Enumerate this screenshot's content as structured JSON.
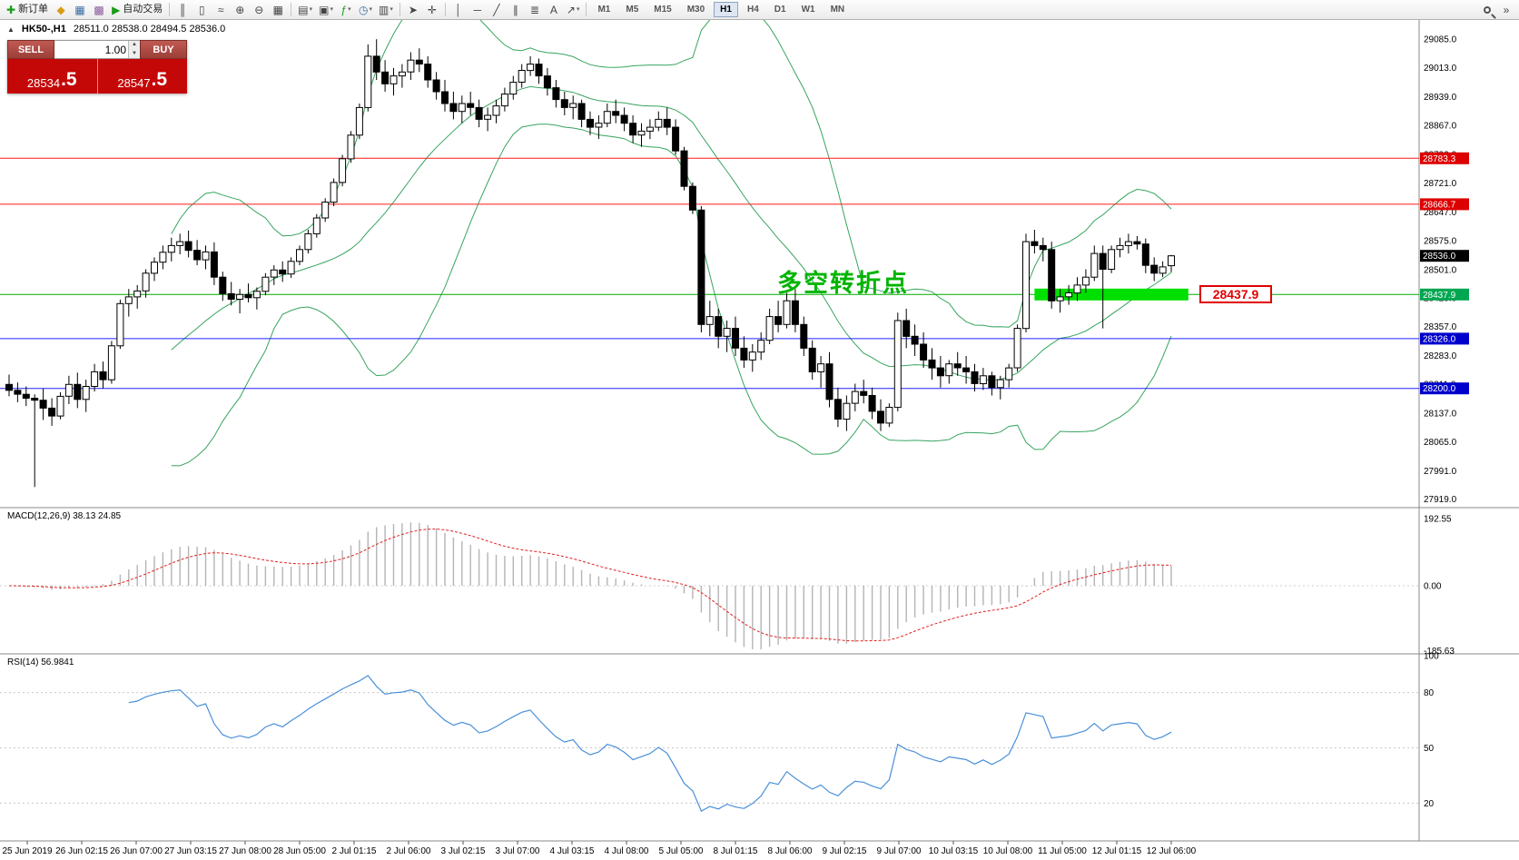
{
  "toolbar": {
    "new_order_label": "新订单",
    "autotrading_label": "自动交易",
    "timeframes": [
      "M1",
      "M5",
      "M15",
      "M30",
      "H1",
      "H4",
      "D1",
      "W1",
      "MN"
    ],
    "active_timeframe": "H1",
    "items": [
      {
        "name": "new-order-button",
        "glyph": "✚",
        "color": "#1a9c1a",
        "label": "新订单"
      },
      {
        "name": "profiles-icon",
        "glyph": "◆",
        "color": "#d89c14"
      },
      {
        "name": "market-watch-icon",
        "glyph": "▦",
        "color": "#3a6ea5"
      },
      {
        "name": "navigator-icon",
        "glyph": "▩",
        "color": "#8a5a9c"
      },
      {
        "name": "autotrading-button",
        "glyph": "▶",
        "color": "#1a9c1a",
        "label": "自动交易"
      },
      {
        "sep": true
      },
      {
        "name": "bar-chart-icon",
        "glyph": "║",
        "color": "#444"
      },
      {
        "name": "candlestick-chart-icon",
        "glyph": "▯",
        "color": "#444"
      },
      {
        "name": "line-chart-icon",
        "glyph": "≈",
        "color": "#444"
      },
      {
        "name": "zoom-in-icon",
        "glyph": "⊕",
        "color": "#444"
      },
      {
        "name": "zoom-out-icon",
        "glyph": "⊖",
        "color": "#444"
      },
      {
        "name": "tile-windows-icon",
        "glyph": "▦",
        "color": "#444"
      },
      {
        "sep": true
      },
      {
        "name": "new-chart-dropdown",
        "glyph": "▤",
        "color": "#444",
        "caret": true
      },
      {
        "name": "profiles-dropdown",
        "glyph": "▣",
        "color": "#444",
        "caret": true
      },
      {
        "name": "add-indicator-dropdown",
        "glyph": "ƒ",
        "color": "#1a9c1a",
        "caret": true
      },
      {
        "name": "period-dropdown",
        "glyph": "◷",
        "color": "#3a6ea5",
        "caret": true
      },
      {
        "name": "template-dropdown",
        "glyph": "▥",
        "color": "#444",
        "caret": true
      },
      {
        "sep": true
      },
      {
        "name": "cursor-icon",
        "glyph": "➤",
        "color": "#444"
      },
      {
        "name": "crosshair-icon",
        "glyph": "✛",
        "color": "#444"
      },
      {
        "sep": true
      },
      {
        "name": "vertical-line-icon",
        "glyph": "│",
        "color": "#444"
      },
      {
        "name": "horizontal-line-icon",
        "glyph": "─",
        "color": "#444"
      },
      {
        "name": "trendline-icon",
        "glyph": "╱",
        "color": "#444"
      },
      {
        "name": "channel-icon",
        "glyph": "∥",
        "color": "#444"
      },
      {
        "name": "fibonacci-icon",
        "glyph": "≣",
        "color": "#444"
      },
      {
        "name": "text-icon",
        "glyph": "A",
        "color": "#444"
      },
      {
        "name": "arrow-tool-dropdown",
        "glyph": "↗",
        "color": "#444",
        "caret": true
      },
      {
        "sep": true
      },
      {
        "timeframes": true
      },
      {
        "spacer": true
      },
      {
        "name": "search-icon"
      },
      {
        "name": "toolbar-overflow-icon",
        "glyph": "»",
        "color": "#444"
      }
    ]
  },
  "chart_header": {
    "symbol_period": "HK50-,H1",
    "ohlc": "28511.0 28538.0 28494.5 28536.0"
  },
  "one_click": {
    "sell_label": "SELL",
    "buy_label": "BUY",
    "volume": "1.00",
    "sell_price_main": "28534",
    "sell_price_frac": ".5",
    "buy_price_main": "28547",
    "buy_price_frac": ".5"
  },
  "indicators": {
    "macd_label": "MACD(12,26,9) 38.13 24.85",
    "rsi_label": "RSI(14) 56.9841"
  },
  "annotation": {
    "text": "多空转折点",
    "color": "#00b400"
  },
  "price_label_box": {
    "text": "28437.9"
  },
  "chart_data": {
    "type": "candlestick",
    "symbol": "HK50",
    "timeframe": "H1",
    "ohlc_readout": {
      "open": 28511.0,
      "high": 28538.0,
      "low": 28494.5,
      "close": 28536.0
    },
    "current_price": 28536.0,
    "price_axis_ticks": [
      29085,
      29013,
      28939,
      28867,
      28793,
      28721,
      28647,
      28575,
      28501,
      28429,
      28357,
      28283,
      28211,
      28137,
      28065,
      27991,
      27919
    ],
    "time_axis_labels": [
      "25 Jun 2019",
      "26 Jun 02:15",
      "26 Jun 07:00",
      "27 Jun 03:15",
      "27 Jun 08:00",
      "28 Jun 05:00",
      "2 Jul 01:15",
      "2 Jul 06:00",
      "3 Jul 02:15",
      "3 Jul 07:00",
      "4 Jul 03:15",
      "4 Jul 08:00",
      "5 Jul 05:00",
      "8 Jul 01:15",
      "8 Jul 06:00",
      "9 Jul 02:15",
      "9 Jul 07:00",
      "10 Jul 03:15",
      "10 Jul 08:00",
      "11 Jul 05:00",
      "12 Jul 01:15",
      "12 Jul 06:00"
    ],
    "hlines": [
      {
        "price": 28783.3,
        "color": "#ff1a1a",
        "badge": "#dd0000"
      },
      {
        "price": 28666.7,
        "color": "#ff1a1a",
        "badge": "#dd0000"
      },
      {
        "price": 28437.9,
        "color": "#00aa00",
        "badge": "#00a651"
      },
      {
        "price": 28326.0,
        "color": "#2020ff",
        "badge": "#0000cc"
      },
      {
        "price": 28200.0,
        "color": "#2020ff",
        "badge": "#0000cc"
      }
    ],
    "highlight_rect": {
      "price": 28437.9,
      "from_bar": 120,
      "to_bar": 138,
      "color": "#00e000",
      "label": "28437.9"
    },
    "bollinger": {
      "period": 20,
      "deviation": 2,
      "color": "#37a45f"
    },
    "macd": {
      "fast": 12,
      "slow": 26,
      "signal": 9,
      "values": [
        38.13,
        24.85
      ],
      "scale": [
        192.55,
        0.0,
        -185.63
      ]
    },
    "rsi": {
      "period": 14,
      "value": 56.9841,
      "scale": [
        100,
        80,
        50,
        20
      ]
    },
    "candles": [
      [
        28210,
        28235,
        28180,
        28195
      ],
      [
        28195,
        28215,
        28165,
        28185
      ],
      [
        28185,
        28205,
        28155,
        28175
      ],
      [
        28175,
        28185,
        27950,
        28170
      ],
      [
        28170,
        28200,
        28120,
        28150
      ],
      [
        28150,
        28175,
        28105,
        28130
      ],
      [
        28130,
        28190,
        28122,
        28180
      ],
      [
        28180,
        28232,
        28160,
        28210
      ],
      [
        28210,
        28240,
        28150,
        28172
      ],
      [
        28172,
        28222,
        28140,
        28205
      ],
      [
        28205,
        28262,
        28192,
        28242
      ],
      [
        28242,
        28268,
        28200,
        28222
      ],
      [
        28222,
        28320,
        28212,
        28308
      ],
      [
        28308,
        28425,
        28300,
        28415
      ],
      [
        28415,
        28452,
        28382,
        28432
      ],
      [
        28432,
        28462,
        28402,
        28447
      ],
      [
        28447,
        28502,
        28430,
        28492
      ],
      [
        28492,
        28532,
        28472,
        28520
      ],
      [
        28520,
        28562,
        28502,
        28545
      ],
      [
        28545,
        28582,
        28522,
        28562
      ],
      [
        28562,
        28592,
        28540,
        28572
      ],
      [
        28572,
        28600,
        28532,
        28550
      ],
      [
        28550,
        28576,
        28512,
        28526
      ],
      [
        28526,
        28562,
        28502,
        28546
      ],
      [
        28546,
        28570,
        28462,
        28482
      ],
      [
        28482,
        28496,
        28422,
        28440
      ],
      [
        28440,
        28470,
        28410,
        28426
      ],
      [
        28426,
        28452,
        28390,
        28438
      ],
      [
        28438,
        28466,
        28418,
        28430
      ],
      [
        28430,
        28456,
        28400,
        28446
      ],
      [
        28446,
        28492,
        28436,
        28482
      ],
      [
        28482,
        28512,
        28462,
        28500
      ],
      [
        28500,
        28522,
        28470,
        28490
      ],
      [
        28490,
        28532,
        28480,
        28522
      ],
      [
        28522,
        28562,
        28512,
        28552
      ],
      [
        28552,
        28602,
        28542,
        28592
      ],
      [
        28592,
        28642,
        28582,
        28632
      ],
      [
        28632,
        28682,
        28622,
        28672
      ],
      [
        28672,
        28732,
        28662,
        28722
      ],
      [
        28722,
        28792,
        28712,
        28782
      ],
      [
        28782,
        28852,
        28772,
        28842
      ],
      [
        28842,
        28922,
        28832,
        28912
      ],
      [
        28912,
        29072,
        28902,
        29042
      ],
      [
        29042,
        29085,
        28982,
        29002
      ],
      [
        29002,
        29032,
        28952,
        28972
      ],
      [
        28972,
        29012,
        28942,
        28992
      ],
      [
        28992,
        29022,
        28962,
        29002
      ],
      [
        29002,
        29052,
        28982,
        29032
      ],
      [
        29032,
        29062,
        29002,
        29022
      ],
      [
        29022,
        29042,
        28962,
        28982
      ],
      [
        28982,
        29002,
        28932,
        28952
      ],
      [
        28952,
        28982,
        28902,
        28922
      ],
      [
        28922,
        28952,
        28882,
        28902
      ],
      [
        28902,
        28942,
        28872,
        28922
      ],
      [
        28922,
        28952,
        28892,
        28912
      ],
      [
        28912,
        28932,
        28862,
        28882
      ],
      [
        28882,
        28912,
        28852,
        28892
      ],
      [
        28892,
        28932,
        28872,
        28916
      ],
      [
        28916,
        28962,
        28902,
        28946
      ],
      [
        28946,
        28992,
        28932,
        28976
      ],
      [
        28976,
        29022,
        28962,
        29006
      ],
      [
        29006,
        29042,
        28992,
        29022
      ],
      [
        29022,
        29036,
        28972,
        28992
      ],
      [
        28992,
        29012,
        28942,
        28962
      ],
      [
        28962,
        28982,
        28912,
        28932
      ],
      [
        28932,
        28952,
        28892,
        28912
      ],
      [
        28912,
        28942,
        28882,
        28922
      ],
      [
        28922,
        28932,
        28862,
        28882
      ],
      [
        28882,
        28902,
        28842,
        28862
      ],
      [
        28862,
        28892,
        28832,
        28872
      ],
      [
        28872,
        28922,
        28862,
        28902
      ],
      [
        28902,
        28932,
        28872,
        28892
      ],
      [
        28892,
        28912,
        28852,
        28872
      ],
      [
        28872,
        28892,
        28822,
        28842
      ],
      [
        28842,
        28872,
        28812,
        28852
      ],
      [
        28852,
        28882,
        28832,
        28862
      ],
      [
        28862,
        28902,
        28852,
        28882
      ],
      [
        28882,
        28912,
        28842,
        28862
      ],
      [
        28862,
        28882,
        28792,
        28802
      ],
      [
        28802,
        28812,
        28702,
        28712
      ],
      [
        28712,
        28722,
        28642,
        28652
      ],
      [
        28652,
        28662,
        28342,
        28362
      ],
      [
        28362,
        28422,
        28332,
        28382
      ],
      [
        28382,
        28402,
        28302,
        28332
      ],
      [
        28332,
        28372,
        28292,
        28352
      ],
      [
        28352,
        28382,
        28282,
        28302
      ],
      [
        28302,
        28332,
        28252,
        28272
      ],
      [
        28272,
        28312,
        28242,
        28292
      ],
      [
        28292,
        28342,
        28272,
        28322
      ],
      [
        28322,
        28402,
        28312,
        28382
      ],
      [
        28382,
        28422,
        28342,
        28362
      ],
      [
        28362,
        28442,
        28352,
        28422
      ],
      [
        28422,
        28452,
        28342,
        28362
      ],
      [
        28362,
        28382,
        28282,
        28302
      ],
      [
        28302,
        28322,
        28222,
        28242
      ],
      [
        28242,
        28282,
        28202,
        28262
      ],
      [
        28262,
        28292,
        28152,
        28172
      ],
      [
        28172,
        28202,
        28102,
        28122
      ],
      [
        28122,
        28182,
        28092,
        28162
      ],
      [
        28162,
        28212,
        28142,
        28192
      ],
      [
        28192,
        28222,
        28162,
        28182
      ],
      [
        28182,
        28202,
        28122,
        28142
      ],
      [
        28142,
        28172,
        28092,
        28112
      ],
      [
        28112,
        28162,
        28102,
        28152
      ],
      [
        28152,
        28392,
        28142,
        28372
      ],
      [
        28372,
        28402,
        28302,
        28332
      ],
      [
        28332,
        28362,
        28282,
        28312
      ],
      [
        28312,
        28342,
        28252,
        28272
      ],
      [
        28272,
        28302,
        28222,
        28252
      ],
      [
        28252,
        28282,
        28202,
        28232
      ],
      [
        28232,
        28272,
        28212,
        28262
      ],
      [
        28262,
        28292,
        28232,
        28252
      ],
      [
        28252,
        28282,
        28212,
        28242
      ],
      [
        28242,
        28262,
        28192,
        28212
      ],
      [
        28212,
        28252,
        28196,
        28232
      ],
      [
        28232,
        28242,
        28182,
        28202
      ],
      [
        28202,
        28232,
        28172,
        28222
      ],
      [
        28222,
        28262,
        28202,
        28252
      ],
      [
        28252,
        28362,
        28242,
        28352
      ],
      [
        28352,
        28592,
        28342,
        28572
      ],
      [
        28572,
        28602,
        28542,
        28562
      ],
      [
        28562,
        28582,
        28522,
        28552
      ],
      [
        28552,
        28572,
        28402,
        28422
      ],
      [
        28422,
        28452,
        28392,
        28432
      ],
      [
        28432,
        28462,
        28412,
        28442
      ],
      [
        28442,
        28482,
        28422,
        28462
      ],
      [
        28462,
        28502,
        28442,
        28482
      ],
      [
        28482,
        28562,
        28472,
        28542
      ],
      [
        28542,
        28562,
        28352,
        28502
      ],
      [
        28502,
        28562,
        28492,
        28552
      ],
      [
        28552,
        28582,
        28532,
        28562
      ],
      [
        28562,
        28592,
        28542,
        28572
      ],
      [
        28572,
        28586,
        28552,
        28566
      ],
      [
        28566,
        28580,
        28492,
        28512
      ],
      [
        28512,
        28532,
        28472,
        28492
      ],
      [
        28492,
        28522,
        28482,
        28508
      ],
      [
        28511,
        28538,
        28494.5,
        28536
      ]
    ]
  }
}
